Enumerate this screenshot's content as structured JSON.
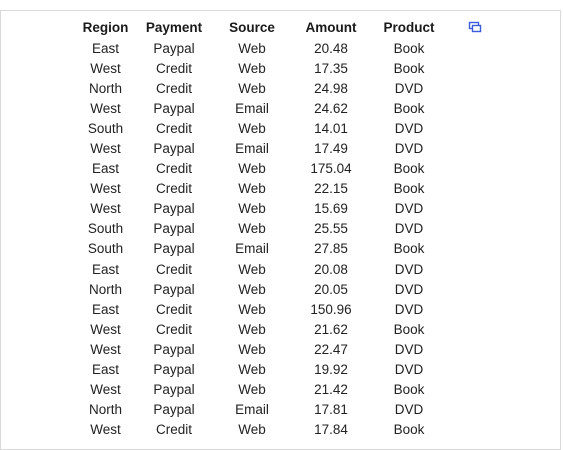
{
  "table": {
    "columns": [
      "Region",
      "Payment",
      "Source",
      "Amount",
      "Product"
    ],
    "rows": [
      [
        "East",
        "Paypal",
        "Web",
        "20.48",
        "Book"
      ],
      [
        "West",
        "Credit",
        "Web",
        "17.35",
        "Book"
      ],
      [
        "North",
        "Credit",
        "Web",
        "24.98",
        "DVD"
      ],
      [
        "West",
        "Paypal",
        "Email",
        "24.62",
        "Book"
      ],
      [
        "South",
        "Credit",
        "Web",
        "14.01",
        "DVD"
      ],
      [
        "West",
        "Paypal",
        "Email",
        "17.49",
        "DVD"
      ],
      [
        "East",
        "Credit",
        "Web",
        "175.04",
        "Book"
      ],
      [
        "West",
        "Credit",
        "Web",
        "22.15",
        "Book"
      ],
      [
        "West",
        "Paypal",
        "Web",
        "15.69",
        "DVD"
      ],
      [
        "South",
        "Paypal",
        "Web",
        "25.55",
        "DVD"
      ],
      [
        "South",
        "Paypal",
        "Email",
        "27.85",
        "Book"
      ],
      [
        "East",
        "Credit",
        "Web",
        "20.08",
        "DVD"
      ],
      [
        "North",
        "Paypal",
        "Web",
        "20.05",
        "DVD"
      ],
      [
        "East",
        "Credit",
        "Web",
        "150.96",
        "DVD"
      ],
      [
        "West",
        "Credit",
        "Web",
        "21.62",
        "Book"
      ],
      [
        "West",
        "Paypal",
        "Web",
        "22.47",
        "DVD"
      ],
      [
        "East",
        "Paypal",
        "Web",
        "19.92",
        "DVD"
      ],
      [
        "West",
        "Paypal",
        "Web",
        "21.42",
        "Book"
      ],
      [
        "North",
        "Paypal",
        "Email",
        "17.81",
        "DVD"
      ],
      [
        "West",
        "Credit",
        "Web",
        "17.84",
        "Book"
      ]
    ]
  },
  "toolbar": {
    "expand_icon": "expand-table-icon",
    "accent_color": "#3b5bdb"
  }
}
